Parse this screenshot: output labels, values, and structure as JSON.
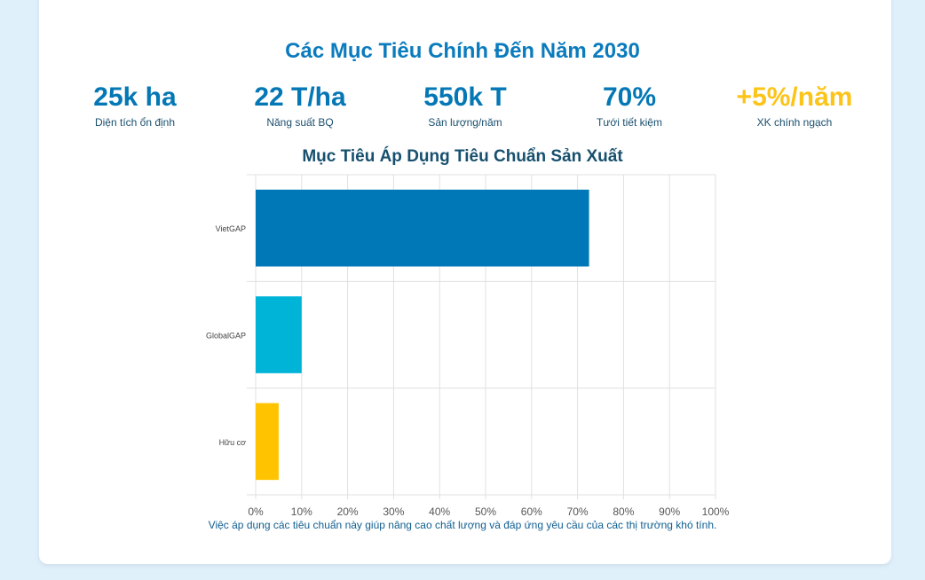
{
  "header": {
    "title": "Các Mục Tiêu Chính Đến Năm 2030"
  },
  "stats": [
    {
      "value": "25k ha",
      "label": "Diện tích ổn định",
      "color": "#0477b5"
    },
    {
      "value": "22 T/ha",
      "label": "Năng suất BQ",
      "color": "#0477b5"
    },
    {
      "value": "550k T",
      "label": "Sản lượng/năm",
      "color": "#0477b5"
    },
    {
      "value": "70%",
      "label": "Tưới tiết kiệm",
      "color": "#0477b5"
    },
    {
      "value": "+5%/năm",
      "label": "XK chính ngạch",
      "color": "#fcc419"
    }
  ],
  "chart_data": {
    "type": "bar",
    "orientation": "horizontal",
    "title": "Mục Tiêu Áp Dụng Tiêu Chuẩn Sản Xuất",
    "categories": [
      "VietGAP",
      "GlobalGAP",
      "Hữu cơ"
    ],
    "values": [
      72.5,
      10,
      5
    ],
    "colors": [
      "#0077b6",
      "#00b4d8",
      "#ffc300"
    ],
    "xlim": [
      0,
      100
    ],
    "xticks": [
      "0%",
      "10%",
      "20%",
      "30%",
      "40%",
      "50%",
      "60%",
      "70%",
      "80%",
      "90%",
      "100%"
    ],
    "grid": true,
    "legend": "none"
  },
  "footer": {
    "note": "Việc áp dụng các tiêu chuẩn này giúp nâng cao chất lượng và đáp ứng yêu cầu của các thị trường khó tính."
  }
}
